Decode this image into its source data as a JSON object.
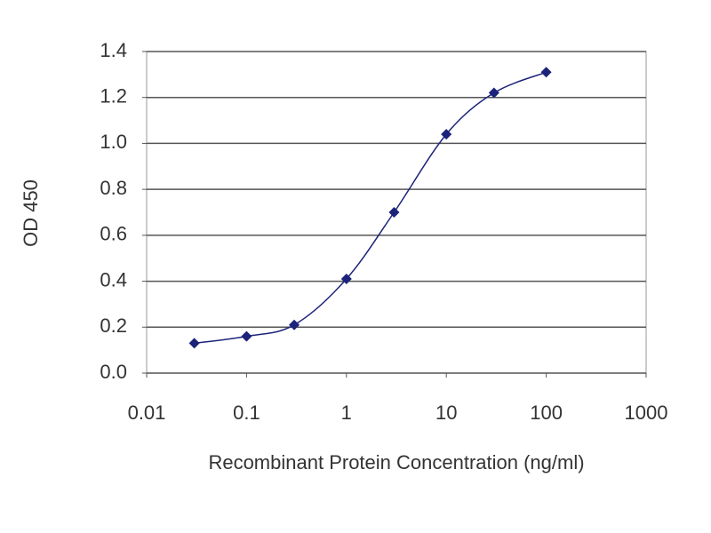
{
  "chart_data": {
    "type": "line",
    "xlabel": "Recombinant Protein Concentration (ng/ml)",
    "ylabel": "OD 450",
    "x": [
      0.03,
      0.1,
      0.3,
      1,
      3,
      10,
      30,
      100
    ],
    "series": [
      {
        "color": "#1c237a",
        "values": [
          0.13,
          0.16,
          0.21,
          0.41,
          0.7,
          1.04,
          1.22,
          1.31
        ]
      }
    ],
    "xlim": [
      0.01,
      1000
    ],
    "xticks": [
      0.01,
      0.1,
      1,
      10,
      100,
      1000
    ],
    "xscale": "log",
    "ylim": [
      0,
      1.4
    ],
    "yticks": [
      {
        "value": 0,
        "label": "0.0"
      },
      0.2,
      0.4,
      0.6,
      0.8,
      {
        "value": 1,
        "label": "1.0"
      },
      1.2,
      1.4
    ],
    "grid": true
  }
}
